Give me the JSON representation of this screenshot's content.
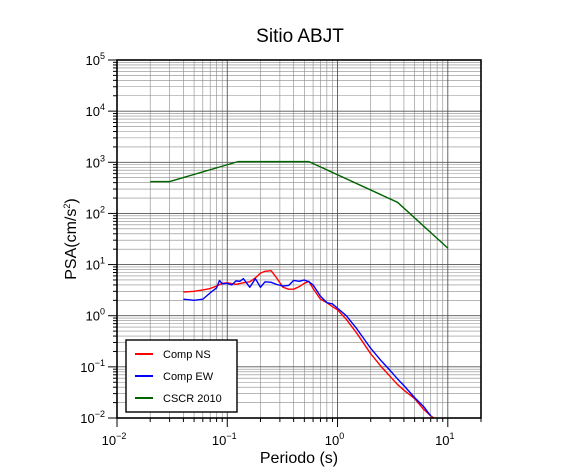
{
  "chart_data": {
    "type": "line",
    "title": "Sitio ABJT",
    "xlabel": "Periodo (s)",
    "ylabel_base": "PSA(cm/s",
    "ylabel_exp": "2",
    "ylabel_tail": ")",
    "x_scale": "log",
    "y_scale": "log",
    "xlim": [
      0.01,
      20
    ],
    "ylim": [
      0.01,
      100000
    ],
    "grid": true,
    "legend_position": "bottom-left",
    "x_ticks": [
      {
        "base": "10",
        "exp": "−2",
        "value": 0.01
      },
      {
        "base": "10",
        "exp": "−1",
        "value": 0.1
      },
      {
        "base": "10",
        "exp": "0",
        "value": 1
      },
      {
        "base": "10",
        "exp": "1",
        "value": 10
      }
    ],
    "y_ticks": [
      {
        "base": "10",
        "exp": "−2",
        "value": 0.01
      },
      {
        "base": "10",
        "exp": "−1",
        "value": 0.1
      },
      {
        "base": "10",
        "exp": "0",
        "value": 1
      },
      {
        "base": "10",
        "exp": "1",
        "value": 10
      },
      {
        "base": "10",
        "exp": "2",
        "value": 100
      },
      {
        "base": "10",
        "exp": "3",
        "value": 1000
      },
      {
        "base": "10",
        "exp": "4",
        "value": 10000
      },
      {
        "base": "10",
        "exp": "5",
        "value": 100000
      }
    ],
    "series": [
      {
        "name": "Comp NS",
        "color": "#ff0000",
        "x": [
          0.04,
          0.05,
          0.06,
          0.07,
          0.08,
          0.09,
          0.1,
          0.12,
          0.14,
          0.16,
          0.18,
          0.2,
          0.22,
          0.25,
          0.28,
          0.32,
          0.36,
          0.4,
          0.45,
          0.5,
          0.55,
          0.6,
          0.7,
          0.8,
          0.9,
          1.0,
          1.2,
          1.5,
          2.0,
          2.5,
          3.0,
          3.5,
          4.0,
          5.0,
          6.0,
          7.0,
          8.0
        ],
        "y": [
          2.9,
          3.0,
          3.2,
          3.4,
          3.8,
          4.3,
          4.4,
          4.1,
          4.4,
          4.6,
          5.5,
          6.8,
          7.4,
          7.6,
          5.5,
          3.6,
          3.3,
          3.3,
          3.7,
          4.3,
          4.7,
          3.4,
          2.1,
          1.8,
          1.5,
          1.3,
          0.85,
          0.45,
          0.18,
          0.1,
          0.065,
          0.045,
          0.035,
          0.024,
          0.015,
          0.011,
          0.009
        ]
      },
      {
        "name": "Comp EW",
        "color": "#0000ff",
        "x": [
          0.04,
          0.05,
          0.06,
          0.07,
          0.08,
          0.085,
          0.09,
          0.1,
          0.11,
          0.12,
          0.13,
          0.14,
          0.16,
          0.18,
          0.2,
          0.22,
          0.25,
          0.28,
          0.32,
          0.36,
          0.4,
          0.45,
          0.5,
          0.55,
          0.6,
          0.7,
          0.8,
          0.9,
          1.0,
          1.2,
          1.5,
          2.0,
          2.5,
          3.0,
          3.5,
          4.0,
          5.0,
          6.0,
          7.0
        ],
        "y": [
          2.1,
          2.0,
          2.1,
          2.8,
          3.5,
          4.9,
          4.2,
          4.3,
          4.0,
          4.8,
          4.7,
          5.3,
          3.6,
          5.3,
          3.6,
          4.6,
          4.5,
          4.1,
          3.8,
          3.9,
          4.9,
          4.7,
          5.0,
          4.6,
          4.0,
          2.4,
          1.8,
          1.7,
          1.4,
          1.0,
          0.55,
          0.23,
          0.13,
          0.085,
          0.058,
          0.043,
          0.025,
          0.017,
          0.011
        ]
      },
      {
        "name": "CSCR 2010",
        "color": "#006400",
        "x": [
          0.02,
          0.03,
          0.125,
          0.55,
          3.5,
          10
        ],
        "y": [
          420,
          420,
          1030,
          1030,
          165,
          21
        ]
      }
    ]
  }
}
